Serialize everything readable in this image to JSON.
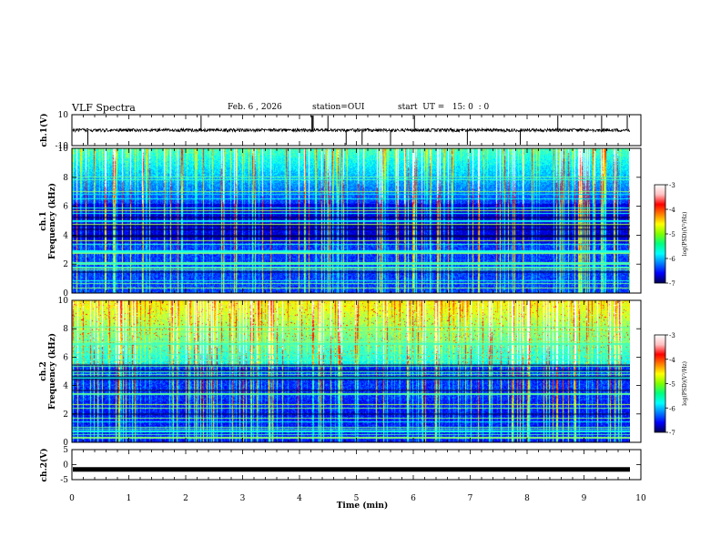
{
  "header": {
    "title": "VLF Spectra",
    "date": "Feb. 6 , 2026",
    "station": "station=OUI",
    "start_ut": "start  UT =   15: 0  : 0"
  },
  "chart_data": [
    {
      "type": "line",
      "panel": "ch1-waveform",
      "ylabel": "ch.1(V)",
      "ylim": [
        -10,
        10
      ],
      "yticks": [
        "10",
        "-10"
      ],
      "xlim": [
        0,
        10
      ],
      "baseline": 0,
      "spikes_x": [
        0.28,
        2.27,
        4.22,
        4.24,
        4.22,
        4.5,
        4.82,
        5.1,
        5.6,
        6.02,
        6.95,
        7.88,
        8.54,
        9.31,
        9.76
      ],
      "color": "#000000"
    },
    {
      "type": "heatmap",
      "panel": "ch1-spectrogram",
      "ylabel": "ch.1\nFrequency  (kHz)",
      "ylim": [
        0,
        10
      ],
      "yticks": [
        "0",
        "2",
        "4",
        "6",
        "8",
        "10"
      ],
      "xlim": [
        0,
        9.83
      ],
      "colorbar": {
        "label": "log(PSD)(V²/Hz)",
        "range": [
          -7,
          -3
        ],
        "ticks": [
          "-3",
          "-4",
          "-5",
          "-6",
          "-7"
        ]
      },
      "intensity": "high-frequency band green/cyan with many vertical impulse streaks; low band dark blue with horizontal lines"
    },
    {
      "type": "heatmap",
      "panel": "ch2-spectrogram",
      "ylabel": "ch.2\nFrequency  (kHz)",
      "ylim": [
        0,
        10
      ],
      "yticks": [
        "0",
        "2",
        "4",
        "6",
        "8",
        "10"
      ],
      "xlim": [
        0,
        9.83
      ],
      "colorbar": {
        "label": "log(PSD)(V²/Hz)",
        "range": [
          -7,
          -3
        ],
        "ticks": [
          "-3",
          "-4",
          "-5",
          "-6",
          "-7"
        ]
      },
      "intensity": "upper band green/yellow with red streaks; lower band blue with horizontal lines"
    },
    {
      "type": "line",
      "panel": "ch2-waveform",
      "ylabel": "ch.2(V)",
      "ylim": [
        -5,
        5
      ],
      "yticks": [
        "5",
        "0",
        "-5"
      ],
      "xlim": [
        0,
        10
      ],
      "baseline": -1.6,
      "color": "#000000"
    }
  ],
  "xaxis": {
    "label": "Time  (min)",
    "ticks": [
      "0",
      "1",
      "2",
      "3",
      "4",
      "5",
      "6",
      "7",
      "8",
      "9",
      "10"
    ]
  },
  "colors": {
    "frame": "#000000",
    "colormap": [
      "#00007f",
      "#0000ff",
      "#007fff",
      "#00ffff",
      "#7fff7f",
      "#ffff00",
      "#ff7f00",
      "#ff0000",
      "#ffffff"
    ]
  }
}
